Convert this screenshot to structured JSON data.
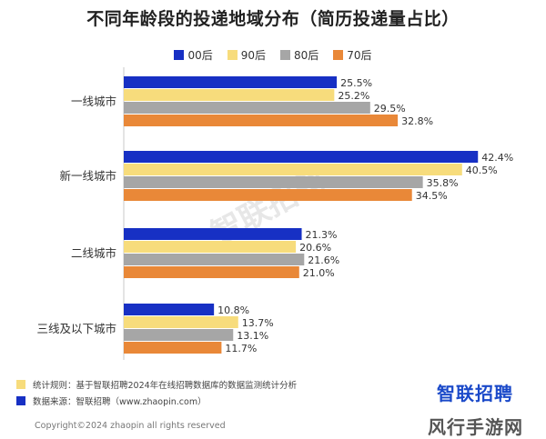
{
  "chart_data": {
    "type": "bar",
    "orientation": "horizontal",
    "title": "不同年龄段的投递地域分布（简历投递量占比）",
    "categories": [
      "一线城市",
      "新一线城市",
      "二线城市",
      "三线及以下城市"
    ],
    "series": [
      {
        "name": "00后",
        "color": "#1730c4",
        "values": [
          25.5,
          42.4,
          21.3,
          10.8
        ]
      },
      {
        "name": "90后",
        "color": "#f7dc7c",
        "values": [
          25.2,
          40.5,
          20.6,
          13.7
        ]
      },
      {
        "name": "80后",
        "color": "#a6a6a6",
        "values": [
          29.5,
          35.8,
          21.6,
          13.1
        ]
      },
      {
        "name": "70后",
        "color": "#e98838",
        "values": [
          32.8,
          34.5,
          21.0,
          11.7
        ]
      }
    ],
    "value_suffix": "%",
    "xlim": [
      0,
      45
    ],
    "legend_position": "top",
    "grid": false
  },
  "footer": {
    "rule_label": "统计规则：基于智联招聘2024年在线招聘数据库的数据监测统计分析",
    "rule_color": "#f7dc7c",
    "source_label": "数据来源：智联招聘（www.zhaopin.com）",
    "source_color": "#1730c4",
    "copyright": "Copyright©2024 zhaopin all rights reserved"
  },
  "brand": {
    "logo_text": "智联招聘",
    "watermark_text": "智联招聘",
    "site_text": "风行手游网"
  }
}
